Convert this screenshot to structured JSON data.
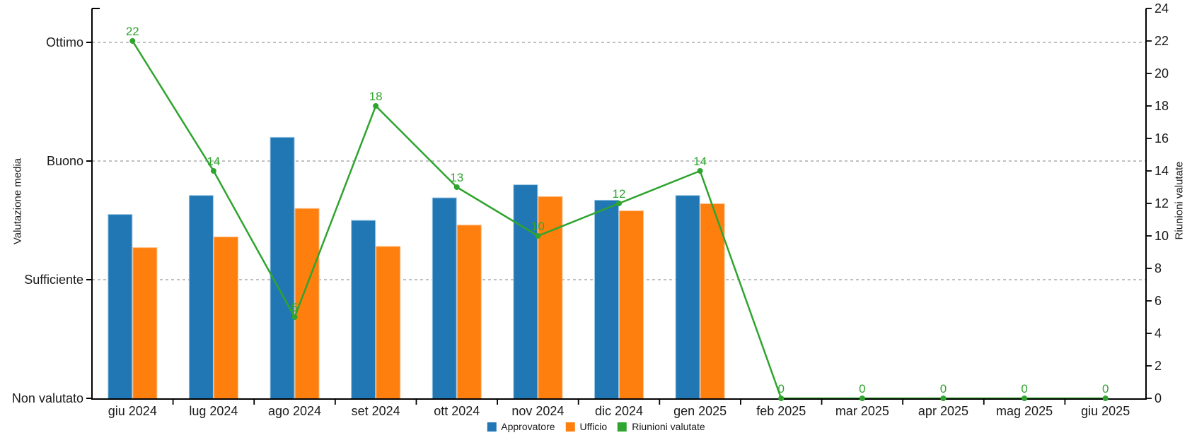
{
  "chart_data": {
    "type": "combo",
    "title": "",
    "categories": [
      "giu 2024",
      "lug 2024",
      "ago 2024",
      "set 2024",
      "ott 2024",
      "nov 2024",
      "dic 2024",
      "gen 2025",
      "feb 2025",
      "mar 2025",
      "apr 2025",
      "mag 2025",
      "giu 2025"
    ],
    "left_axis": {
      "title": "Valutazione media",
      "tick_labels": [
        "Non valutato",
        "Sufficiente",
        "Buono",
        "Ottimo"
      ],
      "tick_values": [
        0,
        1,
        2,
        3
      ],
      "min": 0,
      "max": 3.29,
      "gridlines": "dashed"
    },
    "right_axis": {
      "title": "Riunioni valutate",
      "min": 0,
      "max": 24,
      "step": 2
    },
    "series": [
      {
        "name": "Approvatore",
        "type": "bar",
        "axis": "left",
        "color": "#2077B4",
        "edge_color": "#9CC7E4",
        "values": [
          1.55,
          1.71,
          2.2,
          1.5,
          1.69,
          1.8,
          1.67,
          1.71,
          null,
          null,
          null,
          null,
          null
        ]
      },
      {
        "name": "Ufficio",
        "type": "bar",
        "axis": "left",
        "color": "#FF7F0E",
        "edge_color": "#FFBB80",
        "values": [
          1.27,
          1.36,
          1.6,
          1.28,
          1.46,
          1.7,
          1.58,
          1.64,
          null,
          null,
          null,
          null,
          null
        ]
      },
      {
        "name": "Riunioni valutate",
        "type": "line",
        "axis": "right",
        "color": "#2FA42E",
        "values": [
          22,
          14,
          5,
          18,
          13,
          10,
          12,
          14,
          0,
          0,
          0,
          0,
          0
        ],
        "point_labels": [
          "22",
          "14",
          "5",
          "18",
          "13",
          "10",
          "12",
          "14",
          "0",
          "0",
          "0",
          "0",
          "0"
        ]
      }
    ],
    "legend_position": "bottom",
    "colors": {
      "grid": "#ABABAB",
      "axis": "#000000",
      "tick_text": "#1A1A1A"
    }
  }
}
